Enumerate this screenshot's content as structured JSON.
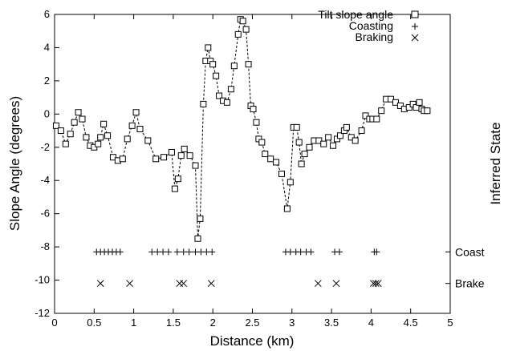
{
  "chart_data": {
    "type": "scatter",
    "xlabel": "Distance (km)",
    "ylabel": "Slope Angle (degrees)",
    "y2label": "Inferred State",
    "xlim": [
      0,
      5
    ],
    "ylim": [
      -12,
      6
    ],
    "xticks": [
      "0",
      "0.5",
      "1",
      "1.5",
      "2",
      "2.5",
      "3",
      "3.5",
      "4",
      "4.5",
      "5"
    ],
    "yticks": [
      "-12",
      "-10",
      "-8",
      "-6",
      "-4",
      "-2",
      "0",
      "2",
      "4",
      "6"
    ],
    "y2ticks": [
      {
        "value": -8.3,
        "label": "Coast"
      },
      {
        "value": -10.2,
        "label": "Brake"
      }
    ],
    "legend_position": "top-right",
    "series": [
      {
        "name": "Tilt slope angle",
        "marker": "open-square",
        "line": "dashed",
        "x": [
          0.02,
          0.08,
          0.14,
          0.2,
          0.25,
          0.3,
          0.35,
          0.4,
          0.45,
          0.5,
          0.55,
          0.58,
          0.62,
          0.67,
          0.74,
          0.8,
          0.86,
          0.92,
          0.98,
          1.03,
          1.08,
          1.18,
          1.28,
          1.38,
          1.48,
          1.52,
          1.56,
          1.6,
          1.64,
          1.71,
          1.78,
          1.81,
          1.84,
          1.88,
          1.91,
          1.94,
          1.97,
          2.0,
          2.04,
          2.08,
          2.13,
          2.18,
          2.23,
          2.27,
          2.32,
          2.35,
          2.38,
          2.42,
          2.45,
          2.48,
          2.51,
          2.55,
          2.58,
          2.62,
          2.66,
          2.73,
          2.8,
          2.87,
          2.94,
          2.98,
          3.02,
          3.06,
          3.09,
          3.12,
          3.16,
          3.22,
          3.28,
          3.34,
          3.4,
          3.46,
          3.52,
          3.57,
          3.61,
          3.66,
          3.69,
          3.75,
          3.8,
          3.88,
          3.93,
          3.98,
          4.02,
          4.07,
          4.13,
          4.19,
          4.25,
          4.31,
          4.37,
          4.42,
          4.48,
          4.53,
          4.57,
          4.61,
          4.64,
          4.67,
          4.71
        ],
        "y": [
          -0.7,
          -1.0,
          -1.8,
          -1.2,
          -0.5,
          0.1,
          -0.3,
          -1.4,
          -1.9,
          -2.0,
          -1.8,
          -1.4,
          -0.6,
          -1.3,
          -2.6,
          -2.8,
          -2.7,
          -1.5,
          -0.7,
          0.1,
          -0.9,
          -1.6,
          -2.7,
          -2.6,
          -2.3,
          -4.5,
          -3.9,
          -2.5,
          -2.1,
          -2.5,
          -3.1,
          -7.5,
          -6.3,
          0.6,
          3.2,
          4.0,
          3.2,
          3.0,
          2.3,
          1.1,
          0.8,
          0.7,
          1.5,
          2.9,
          4.8,
          5.7,
          5.6,
          5.1,
          3.0,
          0.5,
          0.3,
          -0.5,
          -1.5,
          -1.7,
          -2.4,
          -2.7,
          -2.9,
          -3.6,
          -5.7,
          -4.1,
          -0.8,
          -0.8,
          -1.7,
          -3.0,
          -2.4,
          -2.0,
          -1.6,
          -1.6,
          -1.8,
          -1.4,
          -1.9,
          -1.5,
          -1.3,
          -1.0,
          -0.8,
          -1.4,
          -1.6,
          -1.0,
          -0.1,
          -0.3,
          -0.3,
          -0.3,
          0.2,
          0.9,
          0.9,
          0.7,
          0.5,
          0.3,
          0.4,
          0.6,
          0.4,
          0.7,
          0.3,
          0.2,
          0.2
        ]
      },
      {
        "name": "Coasting",
        "marker": "plus",
        "x": [
          0.53,
          0.58,
          0.63,
          0.68,
          0.73,
          0.78,
          0.83,
          1.23,
          1.3,
          1.37,
          1.44,
          1.55,
          1.63,
          1.7,
          1.78,
          1.85,
          1.92,
          1.99,
          2.92,
          2.98,
          3.05,
          3.11,
          3.18,
          3.24,
          3.54,
          3.6,
          4.04,
          4.07
        ],
        "y": [
          -8.3,
          -8.3,
          -8.3,
          -8.3,
          -8.3,
          -8.3,
          -8.3,
          -8.3,
          -8.3,
          -8.3,
          -8.3,
          -8.3,
          -8.3,
          -8.3,
          -8.3,
          -8.3,
          -8.3,
          -8.3,
          -8.3,
          -8.3,
          -8.3,
          -8.3,
          -8.3,
          -8.3,
          -8.3,
          -8.3,
          -8.3,
          -8.3
        ]
      },
      {
        "name": "Braking",
        "marker": "cross",
        "x": [
          0.58,
          0.95,
          1.58,
          1.63,
          1.98,
          3.33,
          3.56,
          4.03,
          4.06,
          4.09
        ],
        "y": [
          -10.2,
          -10.2,
          -10.2,
          -10.2,
          -10.2,
          -10.2,
          -10.2,
          -10.2,
          -10.2,
          -10.2
        ]
      }
    ]
  }
}
